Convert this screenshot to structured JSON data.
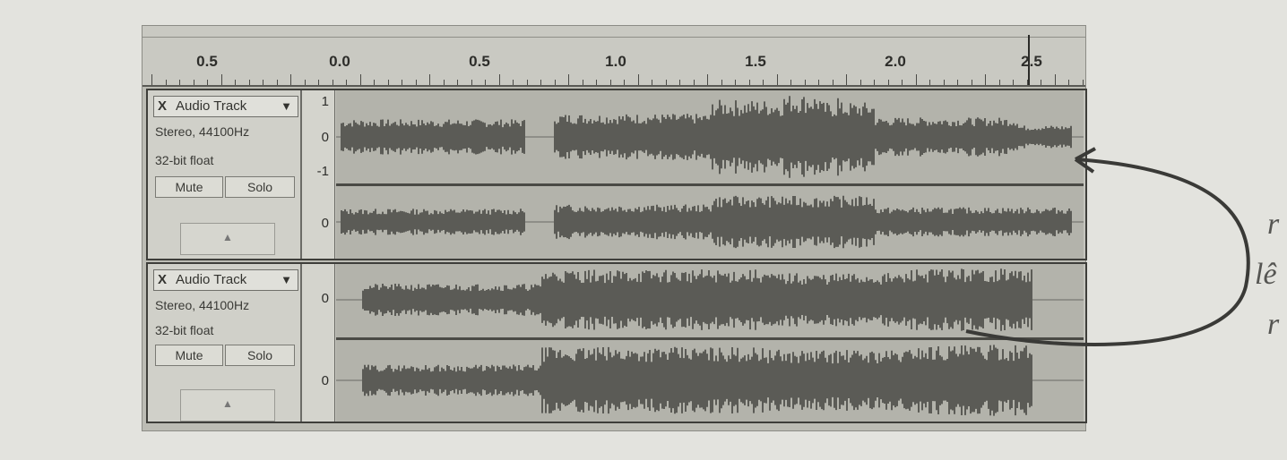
{
  "ruler": {
    "labels": [
      "0.5",
      "0.0",
      "0.5",
      "1.0",
      "1.5",
      "2.0",
      "2.5"
    ]
  },
  "tracks": [
    {
      "name": "Audio Track",
      "close": "X",
      "dropdown": "▼",
      "format": "Stereo, 44100Hz",
      "bitdepth": "32-bit float",
      "mute": "Mute",
      "solo": "Solo",
      "scale_top": "1",
      "scale_mid": "0",
      "scale_bottom": "-1",
      "scale_mid2": "0",
      "collapse": "▲"
    },
    {
      "name": "Audio Track",
      "close": "X",
      "dropdown": "▼",
      "format": "Stereo, 44100Hz",
      "bitdepth": "32-bit float",
      "mute": "Mute",
      "solo": "Solo",
      "scale_mid": "0",
      "scale_mid2": "0",
      "collapse": "▲"
    }
  ],
  "side_text": [
    "r",
    "lê",
    "r"
  ],
  "colors": {
    "waveform": "#5b5b56",
    "waveform_dark": "#3f3f3b",
    "arrow": "#3a3a37"
  }
}
